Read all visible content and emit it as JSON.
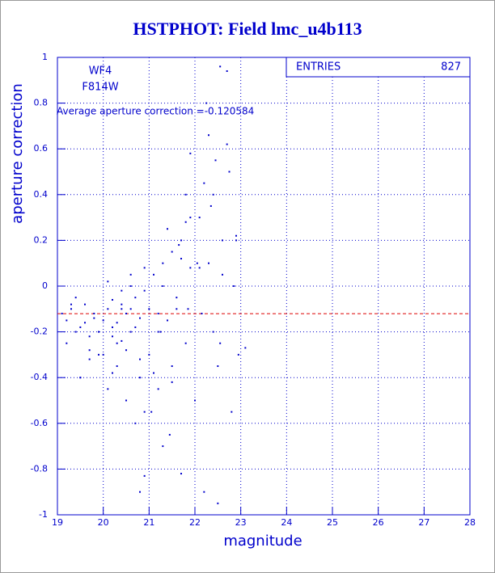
{
  "chart_data": {
    "type": "scatter",
    "title": "HSTPHOT: Field lmc_u4b113",
    "xlabel": "magnitude",
    "ylabel": "aperture correction",
    "annotations": [
      "WF4",
      "F814W",
      "Average aperture correction =-0.120584"
    ],
    "stats": {
      "label": "ENTRIES",
      "value": 827
    },
    "average_line": {
      "value": -0.120584,
      "color": "#dd0000"
    },
    "color": "#0000cc",
    "grid": true,
    "xlim": [
      19,
      28
    ],
    "xticks": [
      19,
      20,
      21,
      22,
      23,
      24,
      25,
      26,
      27,
      28
    ],
    "ylim": [
      -1,
      1
    ],
    "yticks": [
      -1,
      -0.8,
      -0.6,
      -0.4,
      -0.2,
      0,
      0.2,
      0.4,
      0.6,
      0.8,
      1
    ],
    "points": [
      [
        19.1,
        -0.12
      ],
      [
        19.2,
        -0.15
      ],
      [
        19.3,
        -0.1
      ],
      [
        19.4,
        -0.2
      ],
      [
        19.5,
        -0.18
      ],
      [
        19.6,
        -0.08
      ],
      [
        19.7,
        -0.22
      ],
      [
        19.8,
        -0.14
      ],
      [
        19.9,
        -0.3
      ],
      [
        19.2,
        -0.25
      ],
      [
        19.4,
        -0.05
      ],
      [
        19.6,
        -0.16
      ],
      [
        19.8,
        -0.12
      ],
      [
        19.5,
        -0.4
      ],
      [
        19.7,
        -0.28
      ],
      [
        19.9,
        -0.2
      ],
      [
        20.0,
        -0.15
      ],
      [
        20.1,
        -0.1
      ],
      [
        20.2,
        -0.18
      ],
      [
        20.3,
        -0.25
      ],
      [
        20.4,
        -0.08
      ],
      [
        20.5,
        -0.12
      ],
      [
        20.6,
        -0.2
      ],
      [
        20.7,
        -0.05
      ],
      [
        20.8,
        -0.14
      ],
      [
        20.9,
        -0.02
      ],
      [
        20.0,
        -0.3
      ],
      [
        20.1,
        0.02
      ],
      [
        20.2,
        -0.22
      ],
      [
        20.3,
        -0.35
      ],
      [
        20.4,
        -0.1
      ],
      [
        20.5,
        -0.28
      ],
      [
        20.6,
        0.05
      ],
      [
        20.7,
        -0.18
      ],
      [
        20.8,
        -0.4
      ],
      [
        20.9,
        0.08
      ],
      [
        20.1,
        -0.45
      ],
      [
        20.3,
        -0.16
      ],
      [
        20.5,
        -0.5
      ],
      [
        20.7,
        -0.6
      ],
      [
        20.9,
        -0.83
      ],
      [
        20.2,
        -0.06
      ],
      [
        20.4,
        -0.24
      ],
      [
        20.6,
        0.0
      ],
      [
        20.8,
        -0.32
      ],
      [
        21.0,
        -0.1
      ],
      [
        21.1,
        0.05
      ],
      [
        21.2,
        -0.2
      ],
      [
        21.3,
        0.1
      ],
      [
        21.4,
        -0.15
      ],
      [
        21.5,
        0.15
      ],
      [
        21.6,
        -0.05
      ],
      [
        21.7,
        0.2
      ],
      [
        21.8,
        -0.25
      ],
      [
        21.9,
        0.08
      ],
      [
        21.0,
        -0.3
      ],
      [
        21.2,
        -0.45
      ],
      [
        21.4,
        0.25
      ],
      [
        21.6,
        -0.1
      ],
      [
        21.8,
        0.28
      ],
      [
        21.1,
        -0.38
      ],
      [
        21.3,
        0.0
      ],
      [
        21.5,
        -0.35
      ],
      [
        21.7,
        0.12
      ],
      [
        21.9,
        0.3
      ],
      [
        21.05,
        -0.55
      ],
      [
        21.25,
        -0.2
      ],
      [
        21.45,
        -0.65
      ],
      [
        21.65,
        0.18
      ],
      [
        21.85,
        -0.1
      ],
      [
        22.0,
        -0.5
      ],
      [
        22.1,
        0.3
      ],
      [
        22.2,
        0.45
      ],
      [
        22.3,
        0.1
      ],
      [
        22.4,
        0.4
      ],
      [
        22.5,
        -0.35
      ],
      [
        22.6,
        0.2
      ],
      [
        22.7,
        0.62
      ],
      [
        22.8,
        -0.55
      ],
      [
        22.9,
        0.22
      ],
      [
        22.05,
        0.1
      ],
      [
        22.25,
        0.8
      ],
      [
        22.45,
        0.55
      ],
      [
        22.55,
        0.96
      ],
      [
        22.85,
        0.0
      ],
      [
        22.15,
        -0.12
      ],
      [
        22.35,
        0.35
      ],
      [
        22.55,
        -0.25
      ],
      [
        22.75,
        0.5
      ],
      [
        22.95,
        -0.3
      ],
      [
        19.5,
        -0.4
      ],
      [
        20.4,
        -0.02
      ],
      [
        20.9,
        -0.55
      ],
      [
        21.3,
        -0.7
      ],
      [
        21.7,
        -0.82
      ],
      [
        22.2,
        -0.9
      ],
      [
        22.5,
        -0.95
      ],
      [
        22.7,
        0.94
      ],
      [
        20.8,
        -0.9
      ],
      [
        21.8,
        0.4
      ],
      [
        22.3,
        0.66
      ],
      [
        22.6,
        0.05
      ],
      [
        21.2,
        -0.12
      ],
      [
        20.6,
        -0.1
      ],
      [
        19.3,
        -0.08
      ],
      [
        19.7,
        -0.32
      ],
      [
        20.2,
        -0.38
      ],
      [
        21.5,
        -0.42
      ],
      [
        22.1,
        0.08
      ],
      [
        22.4,
        -0.2
      ],
      [
        23.1,
        -0.27
      ],
      [
        22.9,
        0.2
      ],
      [
        21.9,
        0.58
      ]
    ]
  }
}
